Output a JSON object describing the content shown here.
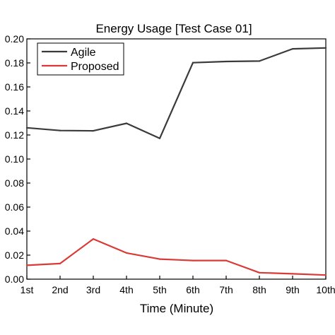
{
  "chart_data": {
    "type": "line",
    "title": "Energy Usage [Test Case 01]",
    "xlabel": "Time (Minute)",
    "ylabel": "",
    "categories": [
      "1st",
      "2nd",
      "3rd",
      "4th",
      "5th",
      "6th",
      "7th",
      "8th",
      "9th",
      "10th"
    ],
    "ylim": [
      0,
      0.2
    ],
    "yticks": [
      "0.00",
      "0.02",
      "0.04",
      "0.06",
      "0.08",
      "0.10",
      "0.12",
      "0.14",
      "0.16",
      "0.18",
      "0.20"
    ],
    "grid": false,
    "legend_position": "top-left",
    "series": [
      {
        "name": "Agile",
        "color": "#3a3a3a",
        "values": [
          0.126,
          0.1237,
          0.1235,
          0.1297,
          0.1172,
          0.1802,
          0.1812,
          0.1815,
          0.1917,
          0.1925
        ]
      },
      {
        "name": "Proposed",
        "color": "#d93a36",
        "values": [
          0.0115,
          0.013,
          0.0335,
          0.0218,
          0.0167,
          0.0155,
          0.0155,
          0.0054,
          0.0045,
          0.0034
        ]
      }
    ]
  }
}
